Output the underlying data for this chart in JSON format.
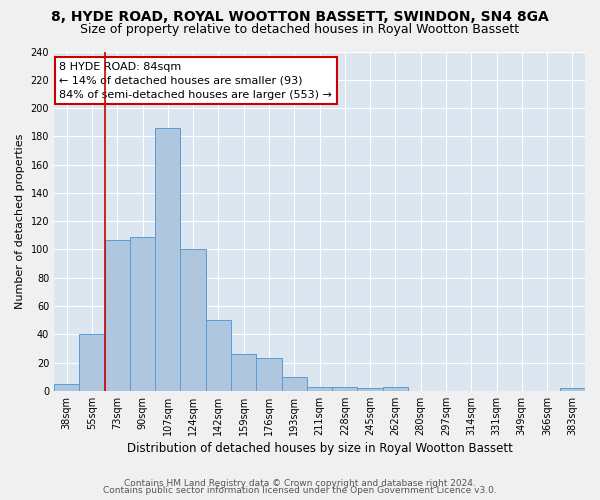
{
  "title1": "8, HYDE ROAD, ROYAL WOOTTON BASSETT, SWINDON, SN4 8GA",
  "title2": "Size of property relative to detached houses in Royal Wootton Bassett",
  "xlabel": "Distribution of detached houses by size in Royal Wootton Bassett",
  "ylabel": "Number of detached properties",
  "footer1": "Contains HM Land Registry data © Crown copyright and database right 2024.",
  "footer2": "Contains public sector information licensed under the Open Government Licence v3.0.",
  "categories": [
    "38sqm",
    "55sqm",
    "73sqm",
    "90sqm",
    "107sqm",
    "124sqm",
    "142sqm",
    "159sqm",
    "176sqm",
    "193sqm",
    "211sqm",
    "228sqm",
    "245sqm",
    "262sqm",
    "280sqm",
    "297sqm",
    "314sqm",
    "331sqm",
    "349sqm",
    "366sqm",
    "383sqm"
  ],
  "values": [
    5,
    40,
    107,
    109,
    186,
    100,
    50,
    26,
    23,
    10,
    3,
    3,
    2,
    3,
    0,
    0,
    0,
    0,
    0,
    0,
    2
  ],
  "bar_color": "#aec6de",
  "bar_edge_color": "#5b9bd5",
  "annotation_line1": "8 HYDE ROAD: 84sqm",
  "annotation_line2": "← 14% of detached houses are smaller (93)",
  "annotation_line3": "84% of semi-detached houses are larger (553) →",
  "annotation_box_color": "#ffffff",
  "annotation_box_edge_color": "#cc0000",
  "vline_x": 1.5,
  "vline_color": "#cc0000",
  "background_color": "#dce6f0",
  "fig_background": "#f0f0f0",
  "ylim": [
    0,
    240
  ],
  "yticks": [
    0,
    20,
    40,
    60,
    80,
    100,
    120,
    140,
    160,
    180,
    200,
    220,
    240
  ],
  "title1_fontsize": 10,
  "title2_fontsize": 9,
  "xlabel_fontsize": 8.5,
  "ylabel_fontsize": 8,
  "tick_fontsize": 7,
  "annotation_fontsize": 8,
  "footer_fontsize": 6.5
}
